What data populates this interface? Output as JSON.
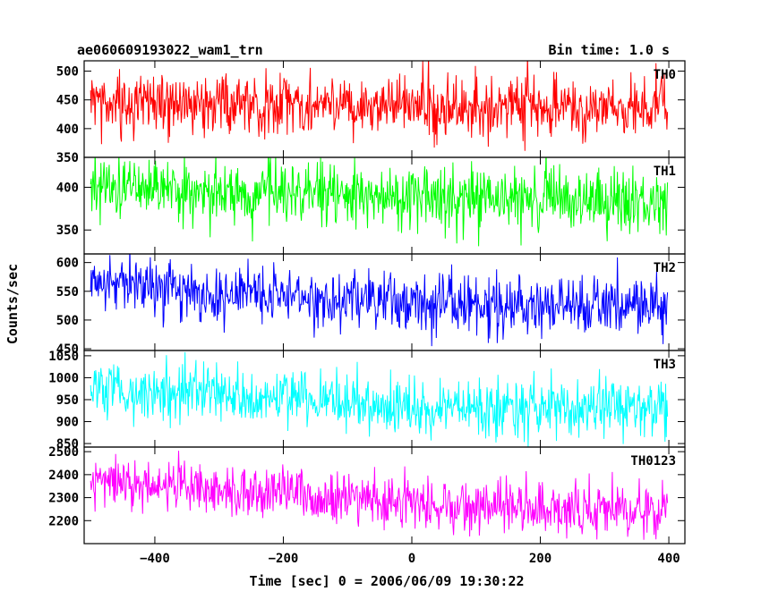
{
  "header": {
    "left": "ae060609193022_wam1_trn",
    "right": "Bin time: 1.0 s"
  },
  "chart_data": {
    "type": "line",
    "xlabel": "Time [sec] 0 = 2006/06/09 19:30:22",
    "ylabel": "Counts/sec",
    "xlim": [
      -510,
      425
    ],
    "x_ticks": [
      -400,
      -200,
      0,
      200,
      400
    ],
    "x_tick_labels": [
      "−400",
      "−200",
      "0",
      "200",
      "400"
    ],
    "x_range": [
      -500,
      398
    ],
    "bin_time": 1.0,
    "panels": [
      {
        "label": "TH0",
        "color": "#ff0000",
        "ylim": [
          350,
          518
        ],
        "y_ticks": [
          350,
          400,
          450,
          500
        ],
        "y_tick_labels": [
          "350",
          "400",
          "450",
          "500"
        ],
        "trend": [
          [
            -500,
            448
          ],
          [
            -400,
            445
          ],
          [
            -200,
            440
          ],
          [
            0,
            437
          ],
          [
            200,
            437
          ],
          [
            398,
            440
          ]
        ],
        "noise_sigma": 27
      },
      {
        "label": "TH1",
        "color": "#00ff00",
        "ylim": [
          322,
          435
        ],
        "y_ticks": [
          350,
          400
        ],
        "y_tick_labels": [
          "350",
          "400"
        ],
        "trend": [
          [
            -500,
            403
          ],
          [
            -400,
            400
          ],
          [
            -200,
            393
          ],
          [
            0,
            387
          ],
          [
            200,
            385
          ],
          [
            398,
            386
          ]
        ],
        "noise_sigma": 18
      },
      {
        "label": "TH2",
        "color": "#0000ff",
        "ylim": [
          447,
          615
        ],
        "y_ticks": [
          450,
          500,
          550,
          600
        ],
        "y_tick_labels": [
          "450",
          "500",
          "550",
          "600"
        ],
        "trend": [
          [
            -500,
            565
          ],
          [
            -400,
            553
          ],
          [
            -200,
            542
          ],
          [
            0,
            530
          ],
          [
            200,
            525
          ],
          [
            398,
            522
          ]
        ],
        "noise_sigma": 25
      },
      {
        "label": "TH3",
        "color": "#00ffff",
        "ylim": [
          842,
          1062
        ],
        "y_ticks": [
          850,
          900,
          950,
          1000,
          1050
        ],
        "y_tick_labels": [
          "850",
          "900",
          "950",
          "1000",
          "1050"
        ],
        "trend": [
          [
            -500,
            975
          ],
          [
            -400,
            965
          ],
          [
            -200,
            955
          ],
          [
            0,
            937
          ],
          [
            200,
            930
          ],
          [
            398,
            925
          ]
        ],
        "noise_sigma": 32
      },
      {
        "label": "TH0123",
        "color": "#ff00ff",
        "ylim": [
          2100,
          2520
        ],
        "y_ticks": [
          2200,
          2300,
          2400,
          2500
        ],
        "y_tick_labels": [
          "2200",
          "2300",
          "2400",
          "2500"
        ],
        "trend": [
          [
            -500,
            2375
          ],
          [
            -400,
            2345
          ],
          [
            -200,
            2320
          ],
          [
            0,
            2275
          ],
          [
            200,
            2250
          ],
          [
            398,
            2245
          ]
        ],
        "noise_sigma": 58
      }
    ]
  }
}
